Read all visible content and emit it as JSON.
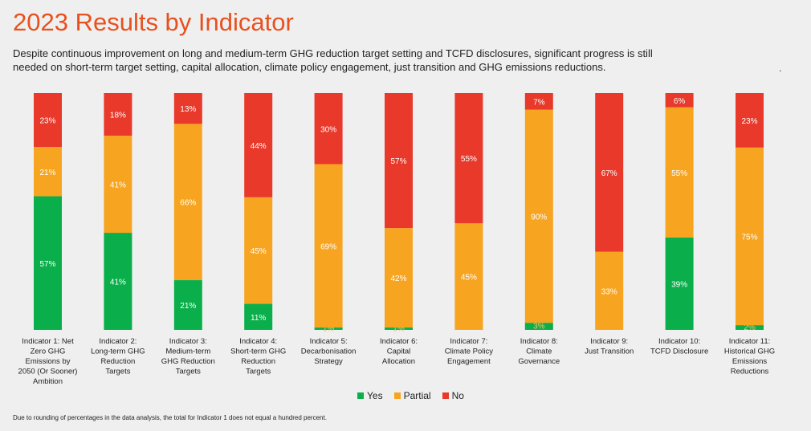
{
  "title": "2023 Results by Indicator",
  "subtitle_lines": [
    "Despite continuous improvement on long and medium-term GHG reduction target setting and TCFD disclosures, significant progress is still",
    "needed on short-term target setting, capital allocation, climate policy engagement, just transition and GHG emissions reductions."
  ],
  "dot": ".",
  "footnote": "Due to rounding of percentages in the data analysis, the total for Indicator 1 does not equal a hundred percent.",
  "colors": {
    "yes": "#0aaf4b",
    "partial": "#f7a521",
    "no": "#e8392b"
  },
  "chart_data": {
    "type": "bar",
    "stacked": true,
    "orientation": "vertical",
    "ylim": [
      0,
      100
    ],
    "grid": false,
    "legend_position": "bottom",
    "categories": [
      [
        "Indicator 1: Net",
        "Zero GHG",
        "Emissions by",
        "2050 (Or Sooner)",
        "Ambition"
      ],
      [
        "Indicator 2:",
        "Long-term GHG",
        "Reduction",
        "Targets"
      ],
      [
        "Indicator 3:",
        "Medium-term",
        "GHG Reduction",
        "Targets"
      ],
      [
        "Indicator 4:",
        "Short-term GHG",
        "Reduction",
        "Targets"
      ],
      [
        "Indicator 5:",
        "Decarbonisation",
        "Strategy"
      ],
      [
        "Indicator 6:",
        "Capital",
        "Allocation"
      ],
      [
        "Indicator 7:",
        "Climate Policy",
        "Engagement"
      ],
      [
        "Indicator 8:",
        "Climate",
        "Governance"
      ],
      [
        "Indicator 9:",
        "Just Transition"
      ],
      [
        "Indicator 10:",
        "TCFD Disclosure"
      ],
      [
        "Indicator 11:",
        "Historical GHG",
        "Emissions",
        "Reductions"
      ]
    ],
    "series": [
      {
        "name": "Yes",
        "key": "yes",
        "values": [
          57,
          41,
          21,
          11,
          1,
          1,
          0,
          3,
          0,
          39,
          2
        ]
      },
      {
        "name": "Partial",
        "key": "partial",
        "values": [
          21,
          41,
          66,
          45,
          69,
          42,
          45,
          90,
          33,
          55,
          75
        ]
      },
      {
        "name": "No",
        "key": "no",
        "values": [
          23,
          18,
          13,
          44,
          30,
          57,
          55,
          7,
          67,
          6,
          23
        ]
      }
    ]
  }
}
